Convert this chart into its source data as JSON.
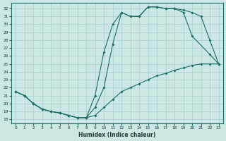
{
  "xlabel": "Humidex (Indice chaleur)",
  "background_color": "#cce8e4",
  "grid_color": "#a8d0cc",
  "line_color": "#1a6e64",
  "xlim": [
    -0.5,
    23.5
  ],
  "ylim": [
    17.5,
    32.7
  ],
  "xticks": [
    0,
    1,
    2,
    3,
    4,
    5,
    6,
    7,
    8,
    9,
    10,
    11,
    12,
    13,
    14,
    15,
    16,
    17,
    18,
    19,
    20,
    21,
    22,
    23
  ],
  "yticks": [
    18,
    19,
    20,
    21,
    22,
    23,
    24,
    25,
    26,
    27,
    28,
    29,
    30,
    31,
    32
  ],
  "line1_x": [
    0,
    1,
    2,
    3,
    4,
    5,
    6,
    7,
    8,
    9,
    10,
    11,
    12,
    13,
    14,
    15,
    16,
    17,
    18,
    19,
    20,
    21,
    22,
    23
  ],
  "line1_y": [
    21.5,
    21.0,
    20.0,
    19.3,
    19.0,
    18.8,
    18.5,
    18.2,
    18.2,
    18.5,
    19.5,
    20.5,
    21.5,
    22.0,
    22.5,
    23.0,
    23.5,
    23.8,
    24.2,
    24.5,
    24.8,
    25.0,
    25.0,
    25.0
  ],
  "line2_x": [
    0,
    1,
    2,
    3,
    4,
    5,
    6,
    7,
    8,
    9,
    10,
    11,
    12,
    13,
    14,
    15,
    16,
    17,
    18,
    19,
    20,
    22,
    23
  ],
  "line2_y": [
    21.5,
    21.0,
    20.0,
    19.3,
    19.0,
    18.8,
    18.5,
    18.2,
    18.2,
    19.5,
    22.0,
    27.5,
    31.5,
    31.0,
    31.0,
    32.2,
    32.2,
    32.0,
    32.0,
    31.5,
    28.5,
    26.2,
    25.0
  ],
  "line3_x": [
    0,
    1,
    2,
    3,
    4,
    5,
    6,
    7,
    8,
    9,
    10,
    11,
    12,
    13,
    14,
    15,
    16,
    17,
    18,
    19,
    20,
    21,
    22,
    23
  ],
  "line3_y": [
    21.5,
    21.0,
    20.0,
    19.3,
    19.0,
    18.8,
    18.5,
    18.2,
    18.2,
    21.0,
    26.5,
    30.0,
    31.5,
    31.0,
    31.0,
    32.2,
    32.2,
    32.0,
    32.0,
    31.8,
    31.5,
    31.0,
    28.0,
    25.0
  ]
}
